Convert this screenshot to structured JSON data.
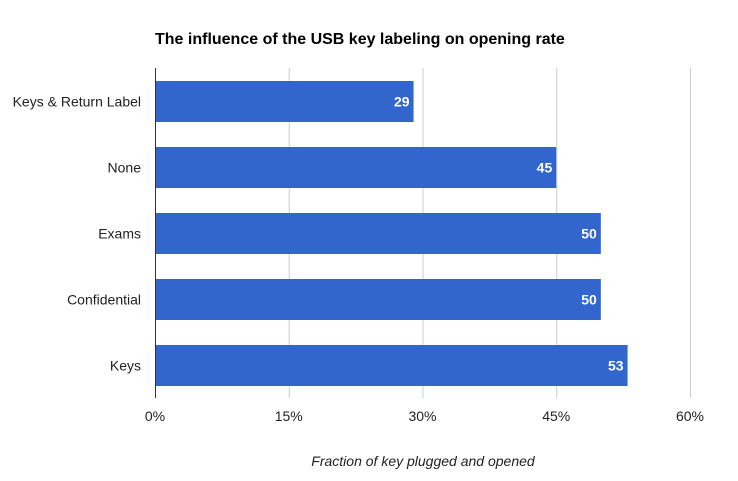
{
  "chart_data": {
    "type": "bar",
    "orientation": "horizontal",
    "title": "The influence of the USB key labeling on opening rate",
    "categories": [
      "Keys & Return Label",
      "None",
      "Exams",
      "Confidential",
      "Keys"
    ],
    "values": [
      29,
      45,
      50,
      50,
      53
    ],
    "data_labels": [
      "29",
      "45",
      "50",
      "50",
      "53"
    ],
    "xlabel": "Fraction of key plugged and opened",
    "ylabel": "",
    "xlim": [
      0,
      60
    ],
    "x_ticks": [
      0,
      15,
      30,
      45,
      60
    ],
    "x_tick_labels": [
      "0%",
      "15%",
      "30%",
      "45%",
      "60%"
    ],
    "grid": true,
    "bar_color": "#3366cc",
    "grid_color": "#cccccc",
    "axis_color": "#333333"
  }
}
